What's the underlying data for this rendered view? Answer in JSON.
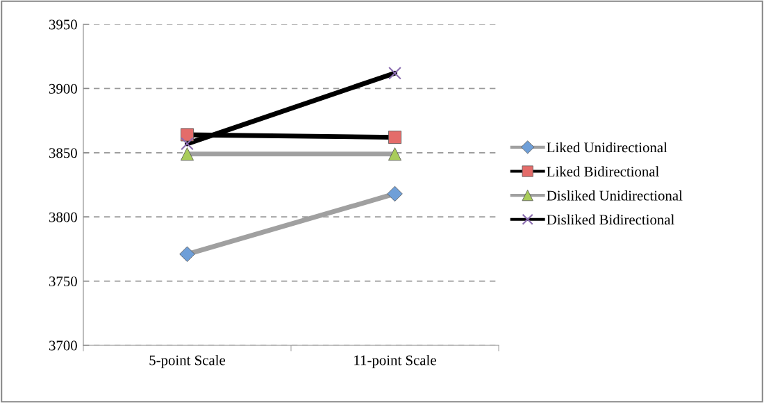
{
  "chart_data": {
    "type": "line",
    "categories": [
      "5-point Scale",
      "11-point Scale"
    ],
    "series": [
      {
        "name": "Liked Unidirectional",
        "color": "#a0a0a0",
        "marker": "diamond",
        "colors": [
          "#6f9fd8",
          "#6f9fd8"
        ],
        "values": [
          3771,
          3818
        ]
      },
      {
        "name": "Liked Bidirectional",
        "color": "#000000",
        "marker": "square",
        "colors": [
          "#e46c6a",
          "#e46c6a"
        ],
        "values": [
          3864,
          3862
        ]
      },
      {
        "name": "Disliked Unidirectional",
        "color": "#a0a0a0",
        "marker": "triangle",
        "colors": [
          "#a9cc5a",
          "#a9cc5a"
        ],
        "values": [
          3849,
          3849
        ]
      },
      {
        "name": "Disliked Bidirectional",
        "color": "#000000",
        "marker": "cross",
        "colors": [
          "#8a6cb0",
          "#8a6cb0"
        ],
        "values": [
          3857,
          3912
        ]
      }
    ],
    "ylim": [
      3700,
      3950
    ],
    "yticks": [
      3700,
      3750,
      3800,
      3850,
      3900,
      3950
    ],
    "grid": "y",
    "legend": "right",
    "line_style": "solid"
  }
}
